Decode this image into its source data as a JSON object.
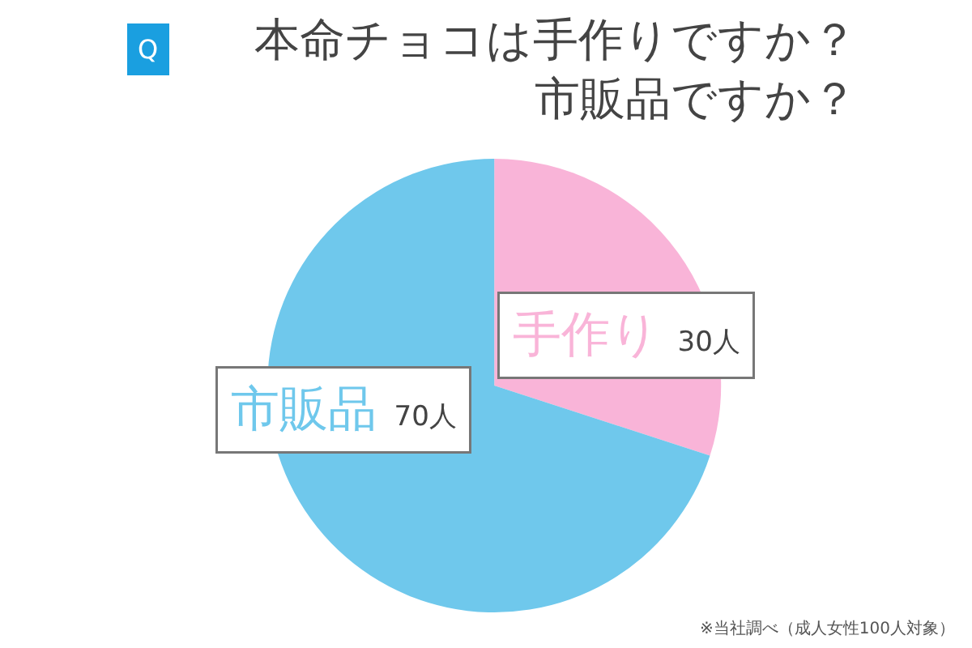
{
  "chart_data": {
    "type": "pie",
    "title": "本命チョコは手作りですか？市販品ですか？",
    "categories": [
      "手作り",
      "市販品"
    ],
    "values": [
      30,
      70
    ],
    "value_labels": [
      "30人",
      "70人"
    ],
    "colors": [
      "#f9b4d8",
      "#6fc8ec"
    ],
    "annotations": [
      "Q",
      "※当社調べ（成人女性100人対象）"
    ],
    "legend": false
  }
}
